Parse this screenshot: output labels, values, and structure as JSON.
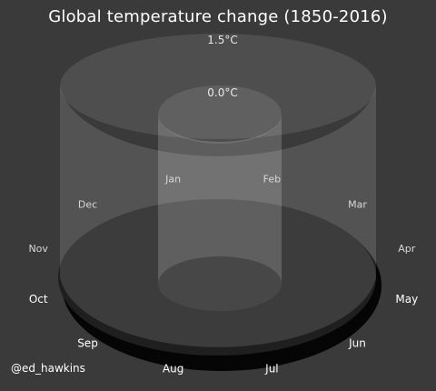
{
  "chart_data": {
    "type": "line",
    "title": "Global temperature change (1850-2016)",
    "radial_labels": [
      "1.5°C",
      "0.0°C"
    ],
    "months": [
      "Jan",
      "Feb",
      "Mar",
      "Apr",
      "May",
      "Jun",
      "Jul",
      "Aug",
      "Sep",
      "Oct",
      "Nov",
      "Dec"
    ],
    "series": [],
    "grid": false,
    "legend": "none"
  },
  "credit": "@ed_hawkins",
  "colors": {
    "background": "#3a3a3a",
    "base_disk": "#050505",
    "floor": "#202020",
    "label": "#e8e8e8"
  }
}
